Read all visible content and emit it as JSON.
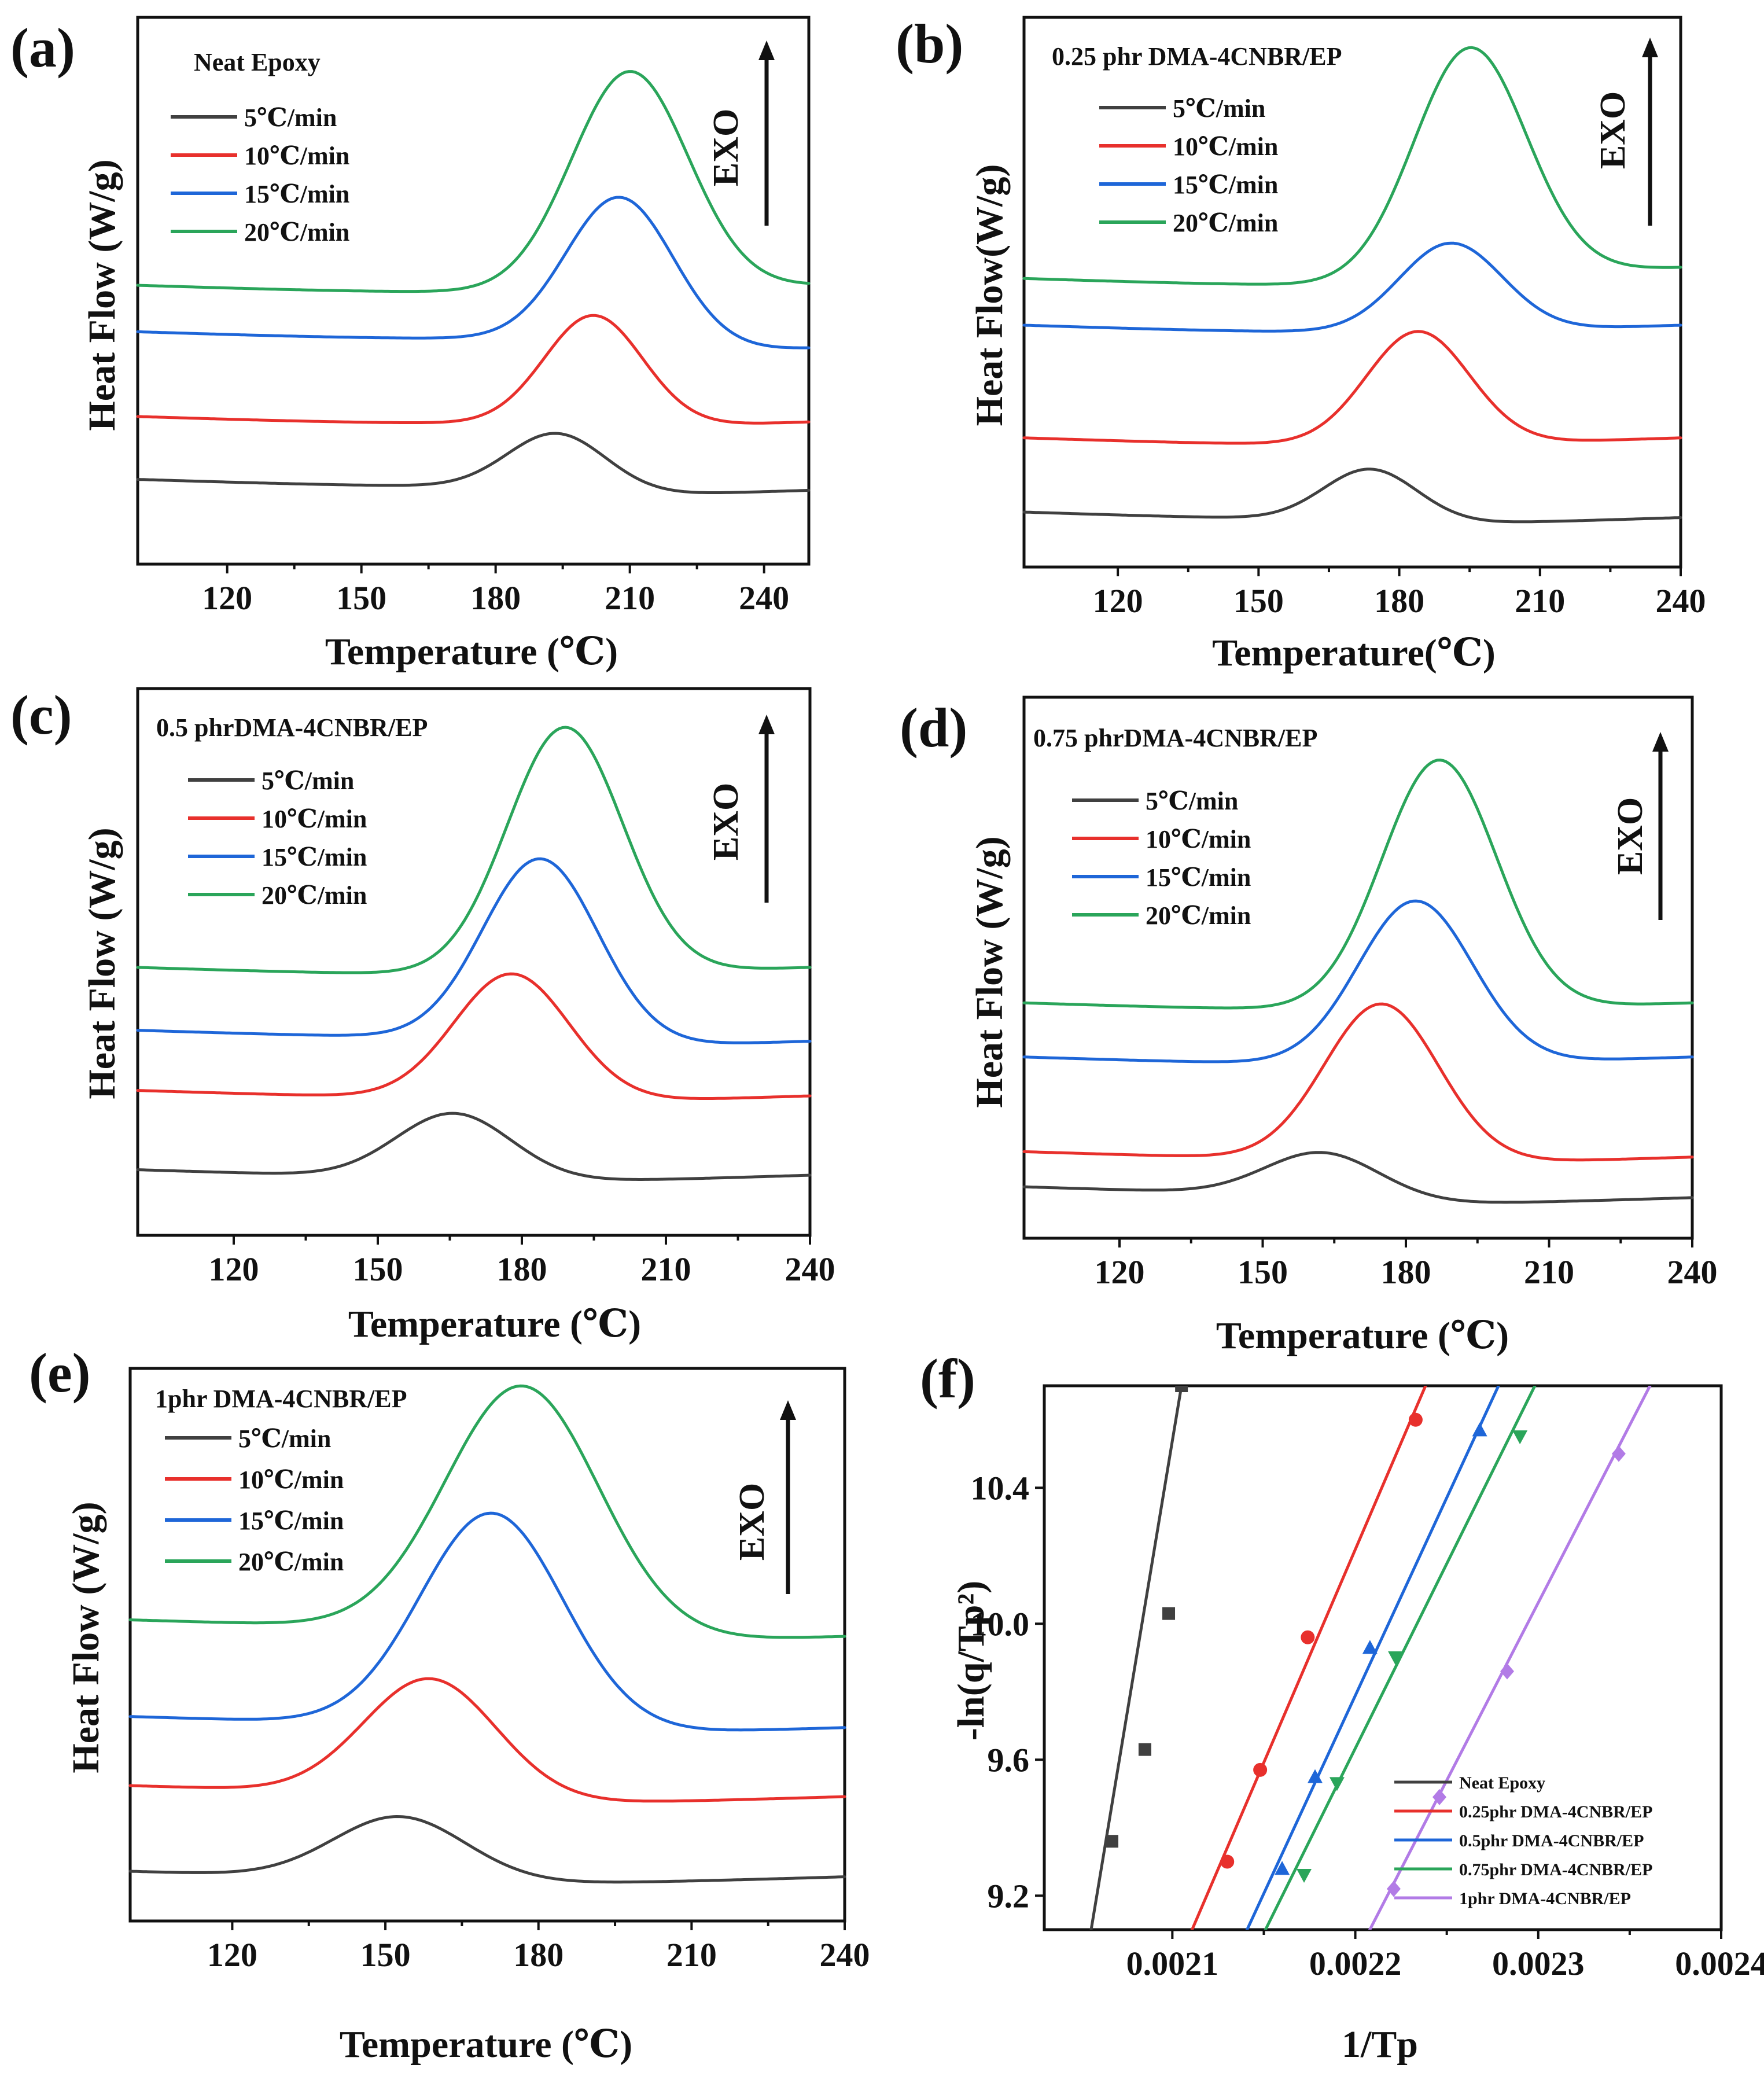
{
  "figure": {
    "panels": [
      {
        "id": "a",
        "label": "(a)",
        "title": "Neat Epoxy",
        "ylabel": "Heat Flow (W/g)",
        "xlabel": "Temperature  (℃)"
      },
      {
        "id": "b",
        "label": "(b)",
        "title": "0.25 phr DMA-4CNBR/EP",
        "ylabel": "Heat Flow(W/g)",
        "xlabel": "Temperature(℃)"
      },
      {
        "id": "c",
        "label": "(c)",
        "title": "0.5 phrDMA-4CNBR/EP",
        "ylabel": "Heat Flow (W/g)",
        "xlabel": "Temperature  (℃)"
      },
      {
        "id": "d",
        "label": "(d)",
        "title": "0.75 phrDMA-4CNBR/EP",
        "ylabel": "Heat Flow (W/g)",
        "xlabel": "Temperature  (℃)"
      },
      {
        "id": "e",
        "label": "(e)",
        "title": "1phr DMA-4CNBR/EP",
        "ylabel": "Heat Flow (W/g)",
        "xlabel": "Temperature  (℃)"
      },
      {
        "id": "f",
        "label": "(f)",
        "title": "",
        "ylabel": "-ln(q/Tp²)",
        "xlabel": "1/Tp"
      }
    ],
    "exo_label": "EXO",
    "colors": {
      "s5": "#404040",
      "s10": "#e8302c",
      "s15": "#1e66d8",
      "s20": "#2aa55a",
      "purple": "#b27be6"
    }
  },
  "chart_data": [
    {
      "type": "line",
      "panel": "a",
      "title": "Neat Epoxy",
      "xlabel": "Temperature  (℃)",
      "ylabel": "Heat Flow (W/g)",
      "xlim": [
        100,
        250
      ],
      "ylim": [
        0,
        1
      ],
      "xticks": [
        120,
        150,
        180,
        210,
        240
      ],
      "series": [
        {
          "name": "5℃/min",
          "color": "#404040",
          "baseline": 0.155,
          "peak_x": 194,
          "height": 0.105,
          "width": 11,
          "tail_offset": -0.02
        },
        {
          "name": "10℃/min",
          "color": "#e8302c",
          "baseline": 0.27,
          "peak_x": 202,
          "height": 0.2,
          "width": 11,
          "tail_offset": -0.01
        },
        {
          "name": "15℃/min",
          "color": "#1e66d8",
          "baseline": 0.425,
          "peak_x": 208,
          "height": 0.27,
          "width": 12,
          "tail_offset": -0.03
        },
        {
          "name": "20℃/min",
          "color": "#2aa55a",
          "baseline": 0.51,
          "peak_x": 210,
          "height": 0.4,
          "width": 13,
          "tail_offset": 0.0
        }
      ]
    },
    {
      "type": "line",
      "panel": "b",
      "title": "0.25 phr DMA-4CNBR/EP",
      "xlabel": "Temperature(℃)",
      "ylabel": "Heat Flow(W/g)",
      "xlim": [
        100,
        240
      ],
      "ylim": [
        0,
        1
      ],
      "xticks": [
        120,
        150,
        180,
        210,
        240
      ],
      "series": [
        {
          "name": "5℃/min",
          "color": "#404040",
          "baseline": 0.1,
          "peak_x": 174,
          "height": 0.095,
          "width": 10,
          "tail_offset": -0.01
        },
        {
          "name": "10℃/min",
          "color": "#e8302c",
          "baseline": 0.235,
          "peak_x": 184,
          "height": 0.205,
          "width": 11,
          "tail_offset": 0.0
        },
        {
          "name": "15℃/min",
          "color": "#1e66d8",
          "baseline": 0.44,
          "peak_x": 191,
          "height": 0.16,
          "width": 11,
          "tail_offset": 0.0
        },
        {
          "name": "20℃/min",
          "color": "#2aa55a",
          "baseline": 0.525,
          "peak_x": 195,
          "height": 0.42,
          "width": 12,
          "tail_offset": 0.02
        }
      ]
    },
    {
      "type": "line",
      "panel": "c",
      "title": "0.5 phrDMA-4CNBR/EP",
      "xlabel": "Temperature  (℃)",
      "ylabel": "Heat Flow (W/g)",
      "xlim": [
        100,
        240
      ],
      "ylim": [
        0,
        1
      ],
      "xticks": [
        120,
        150,
        180,
        210,
        240
      ],
      "series": [
        {
          "name": "5℃/min",
          "color": "#404040",
          "baseline": 0.12,
          "peak_x": 166,
          "height": 0.12,
          "width": 12,
          "tail_offset": -0.01
        },
        {
          "name": "10℃/min",
          "color": "#e8302c",
          "baseline": 0.265,
          "peak_x": 178,
          "height": 0.23,
          "width": 12,
          "tail_offset": -0.01
        },
        {
          "name": "15℃/min",
          "color": "#1e66d8",
          "baseline": 0.375,
          "peak_x": 184,
          "height": 0.335,
          "width": 12,
          "tail_offset": -0.02
        },
        {
          "name": "20℃/min",
          "color": "#2aa55a",
          "baseline": 0.49,
          "peak_x": 189,
          "height": 0.45,
          "width": 12,
          "tail_offset": 0.0
        }
      ]
    },
    {
      "type": "line",
      "panel": "d",
      "title": "0.75 phrDMA-4CNBR/EP",
      "xlabel": "Temperature  (℃)",
      "ylabel": "Heat Flow (W/g)",
      "xlim": [
        100,
        240
      ],
      "ylim": [
        0,
        1
      ],
      "xticks": [
        120,
        150,
        180,
        210,
        240
      ],
      "series": [
        {
          "name": "5℃/min",
          "color": "#404040",
          "baseline": 0.095,
          "peak_x": 163,
          "height": 0.085,
          "width": 12,
          "tail_offset": -0.02
        },
        {
          "name": "10℃/min",
          "color": "#e8302c",
          "baseline": 0.16,
          "peak_x": 175,
          "height": 0.29,
          "width": 12,
          "tail_offset": -0.01
        },
        {
          "name": "15℃/min",
          "color": "#1e66d8",
          "baseline": 0.335,
          "peak_x": 182,
          "height": 0.3,
          "width": 12,
          "tail_offset": 0.0
        },
        {
          "name": "20℃/min",
          "color": "#2aa55a",
          "baseline": 0.435,
          "peak_x": 187,
          "height": 0.46,
          "width": 12,
          "tail_offset": 0.0
        }
      ]
    },
    {
      "type": "line",
      "panel": "e",
      "title": "1phr DMA-4CNBR/EP",
      "xlabel": "Temperature  (℃)",
      "ylabel": "Heat Flow (W/g)",
      "xlim": [
        100,
        240
      ],
      "ylim": [
        0,
        1
      ],
      "xticks": [
        120,
        150,
        180,
        210,
        240
      ],
      "series": [
        {
          "name": "5℃/min",
          "color": "#404040",
          "baseline": 0.09,
          "peak_x": 153,
          "height": 0.115,
          "width": 13,
          "tail_offset": -0.01
        },
        {
          "name": "10℃/min",
          "color": "#e8302c",
          "baseline": 0.245,
          "peak_x": 159,
          "height": 0.215,
          "width": 13,
          "tail_offset": -0.02
        },
        {
          "name": "15℃/min",
          "color": "#1e66d8",
          "baseline": 0.37,
          "peak_x": 171,
          "height": 0.39,
          "width": 14,
          "tail_offset": -0.02
        },
        {
          "name": "20℃/min",
          "color": "#2aa55a",
          "baseline": 0.545,
          "peak_x": 177,
          "height": 0.45,
          "width": 15,
          "tail_offset": -0.03
        }
      ]
    },
    {
      "type": "scatter",
      "panel": "f",
      "title": "",
      "xlabel": "1/Tp",
      "ylabel": "-ln(q/Tp²)",
      "xlim": [
        0.00203,
        0.0024
      ],
      "ylim": [
        9.1,
        10.7
      ],
      "xticks": [
        0.0021,
        0.0022,
        0.0023,
        0.0024
      ],
      "xtick_labels": [
        "0.0021",
        "0.0022",
        "0.0023",
        "0.0024"
      ],
      "yticks": [
        9.2,
        9.6,
        10.0,
        10.4
      ],
      "ytick_labels": [
        "9.2",
        "9.6",
        "10.0",
        "10.4"
      ],
      "series": [
        {
          "name": "Neat Epoxy",
          "color": "#404040",
          "marker": "square",
          "x": [
            0.002067,
            0.002085,
            0.002098,
            0.002105
          ],
          "y": [
            9.36,
            9.63,
            10.03,
            10.7
          ],
          "fit": [
            [
              0.002055,
              9.08
            ],
            [
              0.002105,
              10.7
            ]
          ]
        },
        {
          "name": "0.25phr DMA-4CNBR/EP",
          "color": "#e8302c",
          "marker": "circle",
          "x": [
            0.00213,
            0.002148,
            0.002174,
            0.002233
          ],
          "y": [
            9.3,
            9.57,
            9.96,
            10.6
          ],
          "fit": [
            [
              0.00211,
              9.09
            ],
            [
              0.00224,
              10.72
            ]
          ]
        },
        {
          "name": "0.5phr DMA-4CNBR/EP",
          "color": "#1e66d8",
          "marker": "triangle-up",
          "x": [
            0.00216,
            0.002178,
            0.002208,
            0.002268
          ],
          "y": [
            9.28,
            9.55,
            9.93,
            10.57
          ],
          "fit": [
            [
              0.00214,
              9.09
            ],
            [
              0.00228,
              10.72
            ]
          ]
        },
        {
          "name": "0.75phr DMA-4CNBR/EP",
          "color": "#2aa55a",
          "marker": "triangle-down",
          "x": [
            0.002172,
            0.00219,
            0.002222,
            0.00229
          ],
          "y": [
            9.26,
            9.53,
            9.9,
            10.55
          ],
          "fit": [
            [
              0.00215,
              9.09
            ],
            [
              0.0023,
              10.72
            ]
          ]
        },
        {
          "name": "1phr DMA-4CNBR/EP",
          "color": "#b27be6",
          "marker": "diamond",
          "x": [
            0.002221,
            0.002246,
            0.002283,
            0.002344
          ],
          "y": [
            9.22,
            9.49,
            9.86,
            10.5
          ],
          "fit": [
            [
              0.002207,
              9.09
            ],
            [
              0.002363,
              10.72
            ]
          ]
        }
      ]
    }
  ]
}
